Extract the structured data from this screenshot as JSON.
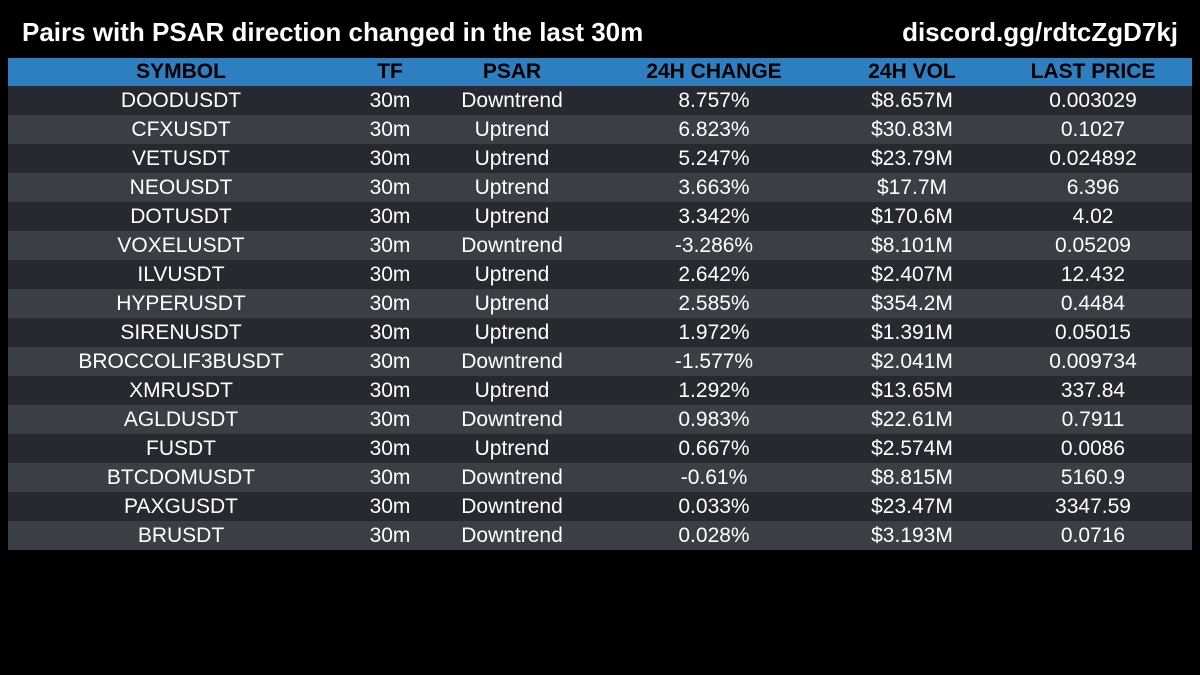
{
  "header": {
    "title": "Pairs with PSAR direction changed in the last 30m",
    "discord": "discord.gg/rdtcZgD7kj"
  },
  "table": {
    "columns": {
      "symbol": "SYMBOL",
      "tf": "TF",
      "psar": "PSAR",
      "change": "24H CHANGE",
      "vol": "24H VOL",
      "price": "LAST PRICE"
    },
    "rows": [
      {
        "symbol": "DOODUSDT",
        "tf": "30m",
        "psar": "Downtrend",
        "change": "8.757%",
        "vol": "$8.657M",
        "price": "0.003029"
      },
      {
        "symbol": "CFXUSDT",
        "tf": "30m",
        "psar": "Uptrend",
        "change": "6.823%",
        "vol": "$30.83M",
        "price": "0.1027"
      },
      {
        "symbol": "VETUSDT",
        "tf": "30m",
        "psar": "Uptrend",
        "change": "5.247%",
        "vol": "$23.79M",
        "price": "0.024892"
      },
      {
        "symbol": "NEOUSDT",
        "tf": "30m",
        "psar": "Uptrend",
        "change": "3.663%",
        "vol": "$17.7M",
        "price": "6.396"
      },
      {
        "symbol": "DOTUSDT",
        "tf": "30m",
        "psar": "Uptrend",
        "change": "3.342%",
        "vol": "$170.6M",
        "price": "4.02"
      },
      {
        "symbol": "VOXELUSDT",
        "tf": "30m",
        "psar": "Downtrend",
        "change": "-3.286%",
        "vol": "$8.101M",
        "price": "0.05209"
      },
      {
        "symbol": "ILVUSDT",
        "tf": "30m",
        "psar": "Uptrend",
        "change": "2.642%",
        "vol": "$2.407M",
        "price": "12.432"
      },
      {
        "symbol": "HYPERUSDT",
        "tf": "30m",
        "psar": "Uptrend",
        "change": "2.585%",
        "vol": "$354.2M",
        "price": "0.4484"
      },
      {
        "symbol": "SIRENUSDT",
        "tf": "30m",
        "psar": "Uptrend",
        "change": "1.972%",
        "vol": "$1.391M",
        "price": "0.05015"
      },
      {
        "symbol": "BROCCOLIF3BUSDT",
        "tf": "30m",
        "psar": "Downtrend",
        "change": "-1.577%",
        "vol": "$2.041M",
        "price": "0.009734"
      },
      {
        "symbol": "XMRUSDT",
        "tf": "30m",
        "psar": "Uptrend",
        "change": "1.292%",
        "vol": "$13.65M",
        "price": "337.84"
      },
      {
        "symbol": "AGLDUSDT",
        "tf": "30m",
        "psar": "Downtrend",
        "change": "0.983%",
        "vol": "$22.61M",
        "price": "0.7911"
      },
      {
        "symbol": "FUSDT",
        "tf": "30m",
        "psar": "Uptrend",
        "change": "0.667%",
        "vol": "$2.574M",
        "price": "0.0086"
      },
      {
        "symbol": "BTCDOMUSDT",
        "tf": "30m",
        "psar": "Downtrend",
        "change": "-0.61%",
        "vol": "$8.815M",
        "price": "5160.9"
      },
      {
        "symbol": "PAXGUSDT",
        "tf": "30m",
        "psar": "Downtrend",
        "change": "0.033%",
        "vol": "$23.47M",
        "price": "3347.59"
      },
      {
        "symbol": "BRUSDT",
        "tf": "30m",
        "psar": "Downtrend",
        "change": "0.028%",
        "vol": "$3.193M",
        "price": "0.0716"
      }
    ]
  },
  "colors": {
    "background": "#000000",
    "header_row": "#2e7fbf",
    "row_odd": "#262a30",
    "row_even": "#3a3f46",
    "text": "#ffffff"
  }
}
